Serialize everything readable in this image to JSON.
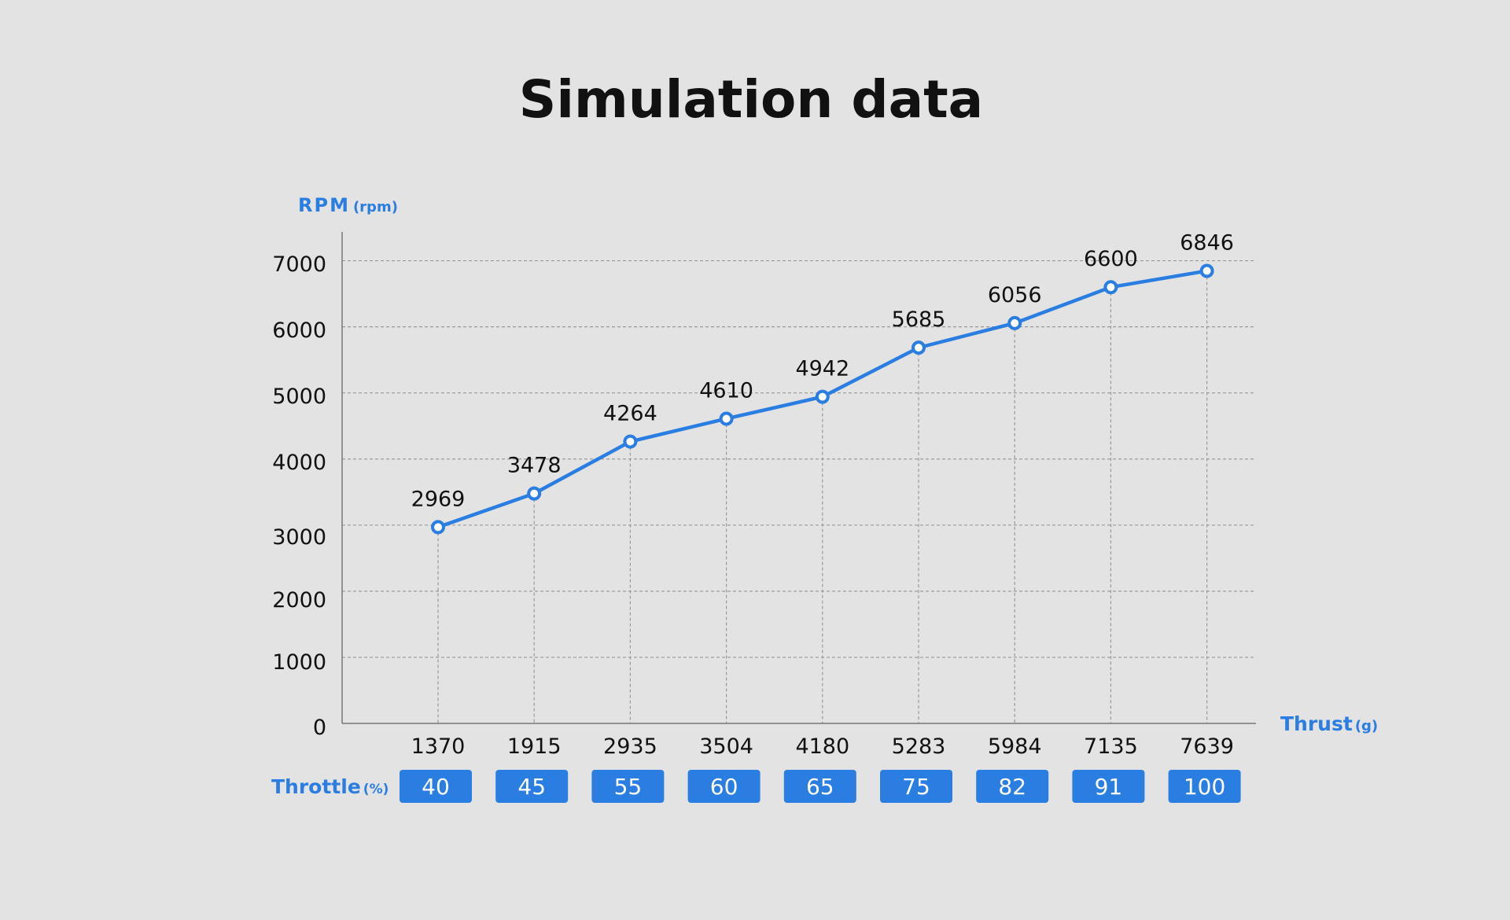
{
  "title": "Simulation data",
  "colors": {
    "background": "#e3e3e3",
    "accent": "#2a7de1",
    "text": "#111111",
    "grid": "#9a9a9a"
  },
  "y_axis": {
    "label": "RPM",
    "unit": "(rpm)"
  },
  "x_axis": {
    "label": "Thrust",
    "unit": "(g)"
  },
  "throttle_row": {
    "label": "Throttle",
    "unit": "(%)"
  },
  "chart_data": {
    "type": "line",
    "title": "Simulation data",
    "xlabel": "Thrust (g)",
    "ylabel": "RPM (rpm)",
    "ylim": [
      0,
      7000
    ],
    "yticks": [
      0,
      1000,
      2000,
      3000,
      4000,
      5000,
      6000,
      7000
    ],
    "grid": true,
    "categories": [
      "1370",
      "1915",
      "2935",
      "3504",
      "4180",
      "5283",
      "5984",
      "7135",
      "7639"
    ],
    "values": [
      2969,
      3478,
      4264,
      4610,
      4942,
      5685,
      6056,
      6600,
      6846
    ],
    "throttle": [
      "40",
      "45",
      "55",
      "60",
      "65",
      "75",
      "82",
      "91",
      "100"
    ]
  }
}
